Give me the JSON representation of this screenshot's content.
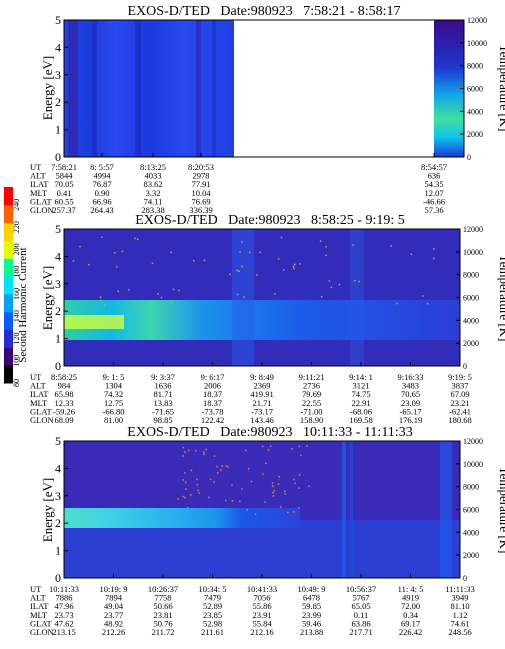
{
  "figure": {
    "colorbar": {
      "label": "Second Harmonic Current",
      "ticks": [
        "80",
        "100",
        "120",
        "140",
        "160",
        "180",
        "200",
        "220",
        "240"
      ],
      "colors": [
        "#000000",
        "#3c007a",
        "#2a2ad8",
        "#0a5cff",
        "#00a0ff",
        "#00e0ff",
        "#00ff90",
        "#e0ff00",
        "#ffd200",
        "#ff6000",
        "#ff0000"
      ]
    },
    "panels": [
      {
        "title": "EXOS-D/TED   Date:980923   7:58:21 - 8:58:17",
        "ylabel": "Energy [eV]",
        "ylabel_right": "Temperature [K]",
        "yticks": [
          "0",
          "1",
          "2",
          "3",
          "4",
          "5"
        ],
        "rticks": [
          "0",
          "2000",
          "4000",
          "6000",
          "8000",
          "10000",
          "12000"
        ],
        "row_labels": [
          "UT",
          "ALT",
          "ILAT",
          "MLT",
          "GLAT",
          "GLON"
        ],
        "columns": [
          [
            "7:58:21",
            "5844",
            "70.05",
            "0.41",
            "60.55",
            "257.37"
          ],
          [
            "8: 5:57",
            "4994",
            "76.87",
            "0.90",
            "66.96",
            "264.43"
          ],
          [
            "8:13:25",
            "4033",
            "83.62",
            "3.32",
            "74.11",
            "283.38"
          ],
          [
            "8:20:53",
            "2978",
            "77.91",
            "10.04",
            "76.69",
            "336.39"
          ],
          [
            "8:54:57",
            "636",
            "54.35",
            "12.07",
            "-46.66",
            "57.36"
          ]
        ]
      },
      {
        "title": "EXOS-D/TED   Date:980923   8:58:25 - 9:19: 5",
        "ylabel": "Energy [eV]",
        "ylabel_right": "Temperature [K]",
        "yticks": [
          "0",
          "1",
          "2",
          "3",
          "4",
          "5"
        ],
        "rticks": [
          "0",
          "2000",
          "4000",
          "6000",
          "8000",
          "10000",
          "12000"
        ],
        "row_labels": [
          "UT",
          "ALT",
          "ILAT",
          "MLT",
          "GLAT",
          "GLON"
        ],
        "columns": [
          [
            "8:58:25",
            "984",
            "65.98",
            "12.33",
            "-59.26",
            "68.09"
          ],
          [
            "9: 1: 5",
            "1304",
            "74.32",
            "12.75",
            "-66.80",
            "81.00"
          ],
          [
            "9: 3:37",
            "1636",
            "81.71",
            "13.83",
            "-71.65",
            "98.85"
          ],
          [
            "9: 6:17",
            "2006",
            "18.37",
            "18.37",
            "-73.78",
            "122.42"
          ],
          [
            "9: 8:49",
            "2369",
            "419.91",
            "21.71",
            "-73.17",
            "143.46"
          ],
          [
            "9:11:21",
            "2736",
            "79.69",
            "22.55",
            "-71.00",
            "158.90"
          ],
          [
            "9:14: 1",
            "3121",
            "74.75",
            "22.91",
            "-68.06",
            "169.58"
          ],
          [
            "9:16:33",
            "3483",
            "70.65",
            "23.09",
            "-65.17",
            "176.19"
          ],
          [
            "9:19: 5",
            "3837",
            "67.09",
            "23.21",
            "-62.41",
            "180.68"
          ]
        ]
      },
      {
        "title": "EXOS-D/TED   Date:980923   10:11:33 - 11:11:33",
        "ylabel": "Energy [eV]",
        "ylabel_right": "Temperature [K]",
        "yticks": [
          "0",
          "1",
          "2",
          "3",
          "4",
          "5"
        ],
        "rticks": [
          "0",
          "2000",
          "4000",
          "6000",
          "8000",
          "10000",
          "12000"
        ],
        "row_labels": [
          "UT",
          "ALT",
          "ILAT",
          "MLT",
          "GLAT",
          "GLON"
        ],
        "columns": [
          [
            "10:11:33",
            "7886",
            "47.96",
            "23.73",
            "47.62",
            "213.15"
          ],
          [
            "10:19: 9",
            "7894",
            "49.04",
            "23.77",
            "48.92",
            "212.26"
          ],
          [
            "10:26:37",
            "7758",
            "50.66",
            "23.81",
            "50.76",
            "211.72"
          ],
          [
            "10:34: 5",
            "7479",
            "52.89",
            "23.85",
            "52.98",
            "211.61"
          ],
          [
            "10:41:33",
            "7056",
            "55.86",
            "23.91",
            "55.84",
            "212.16"
          ],
          [
            "10:49: 9",
            "6478",
            "59.85",
            "23.99",
            "59.46",
            "213.88"
          ],
          [
            "10:56:37",
            "5767",
            "65.05",
            "0.11",
            "63.86",
            "217.71"
          ],
          [
            "11: 4: 5",
            "4919",
            "72.00",
            "0.34",
            "69.17",
            "226.42"
          ],
          [
            "11:11:33",
            "3949",
            "81.10",
            "1.12",
            "74.61",
            "248.56"
          ]
        ]
      }
    ]
  },
  "chart_data": [
    {
      "type": "heatmap",
      "title": "EXOS-D/TED   Date:980923   7:58:21 - 8:58:17",
      "xlabel": "UT",
      "ylabel": "Energy [eV]",
      "ylabel_right": "Temperature [K]",
      "ylim": [
        0,
        5
      ],
      "ylim_right": [
        0,
        12000
      ],
      "colorbar_label": "Second Harmonic Current",
      "colorbar_range": [
        80,
        240
      ],
      "x_ticks": [
        "7:58:21",
        "8: 5:57",
        "8:13:25",
        "8:20:53",
        "8:54:57"
      ],
      "data_coverage": [
        [
          "7:58:21",
          "8:22:30"
        ],
        [
          "8:53:30",
          "8:58:17"
        ]
      ],
      "dominant_level": 130
    },
    {
      "type": "heatmap",
      "title": "EXOS-D/TED   Date:980923   8:58:25 - 9:19: 5",
      "xlabel": "UT",
      "ylabel": "Energy [eV]",
      "ylabel_right": "Temperature [K]",
      "ylim": [
        0,
        5
      ],
      "ylim_right": [
        0,
        12000
      ],
      "colorbar_label": "Second Harmonic Current",
      "colorbar_range": [
        80,
        240
      ],
      "x_ticks": [
        "8:58:25",
        "9: 1: 5",
        "9: 3:37",
        "9: 6:17",
        "9: 8:49",
        "9:11:21",
        "9:14: 1",
        "9:16:33",
        "9:19: 5"
      ],
      "band": {
        "energy_center": 1.6,
        "energy_width": 0.9,
        "level": 165
      },
      "dominant_level": 110
    },
    {
      "type": "heatmap",
      "title": "EXOS-D/TED   Date:980923   10:11:33 - 11:11:33",
      "xlabel": "UT",
      "ylabel": "Energy [eV]",
      "ylabel_right": "Temperature [K]",
      "ylim": [
        0,
        5
      ],
      "ylim_right": [
        0,
        12000
      ],
      "colorbar_label": "Second Harmonic Current",
      "colorbar_range": [
        80,
        240
      ],
      "x_ticks": [
        "10:11:33",
        "10:19: 9",
        "10:26:37",
        "10:34: 5",
        "10:41:33",
        "10:49: 9",
        "10:56:37",
        "11: 4: 5",
        "11:11:33"
      ],
      "band": {
        "energy_center": 2.0,
        "energy_width": 0.5,
        "level": 150
      },
      "dominant_level": 120
    }
  ]
}
